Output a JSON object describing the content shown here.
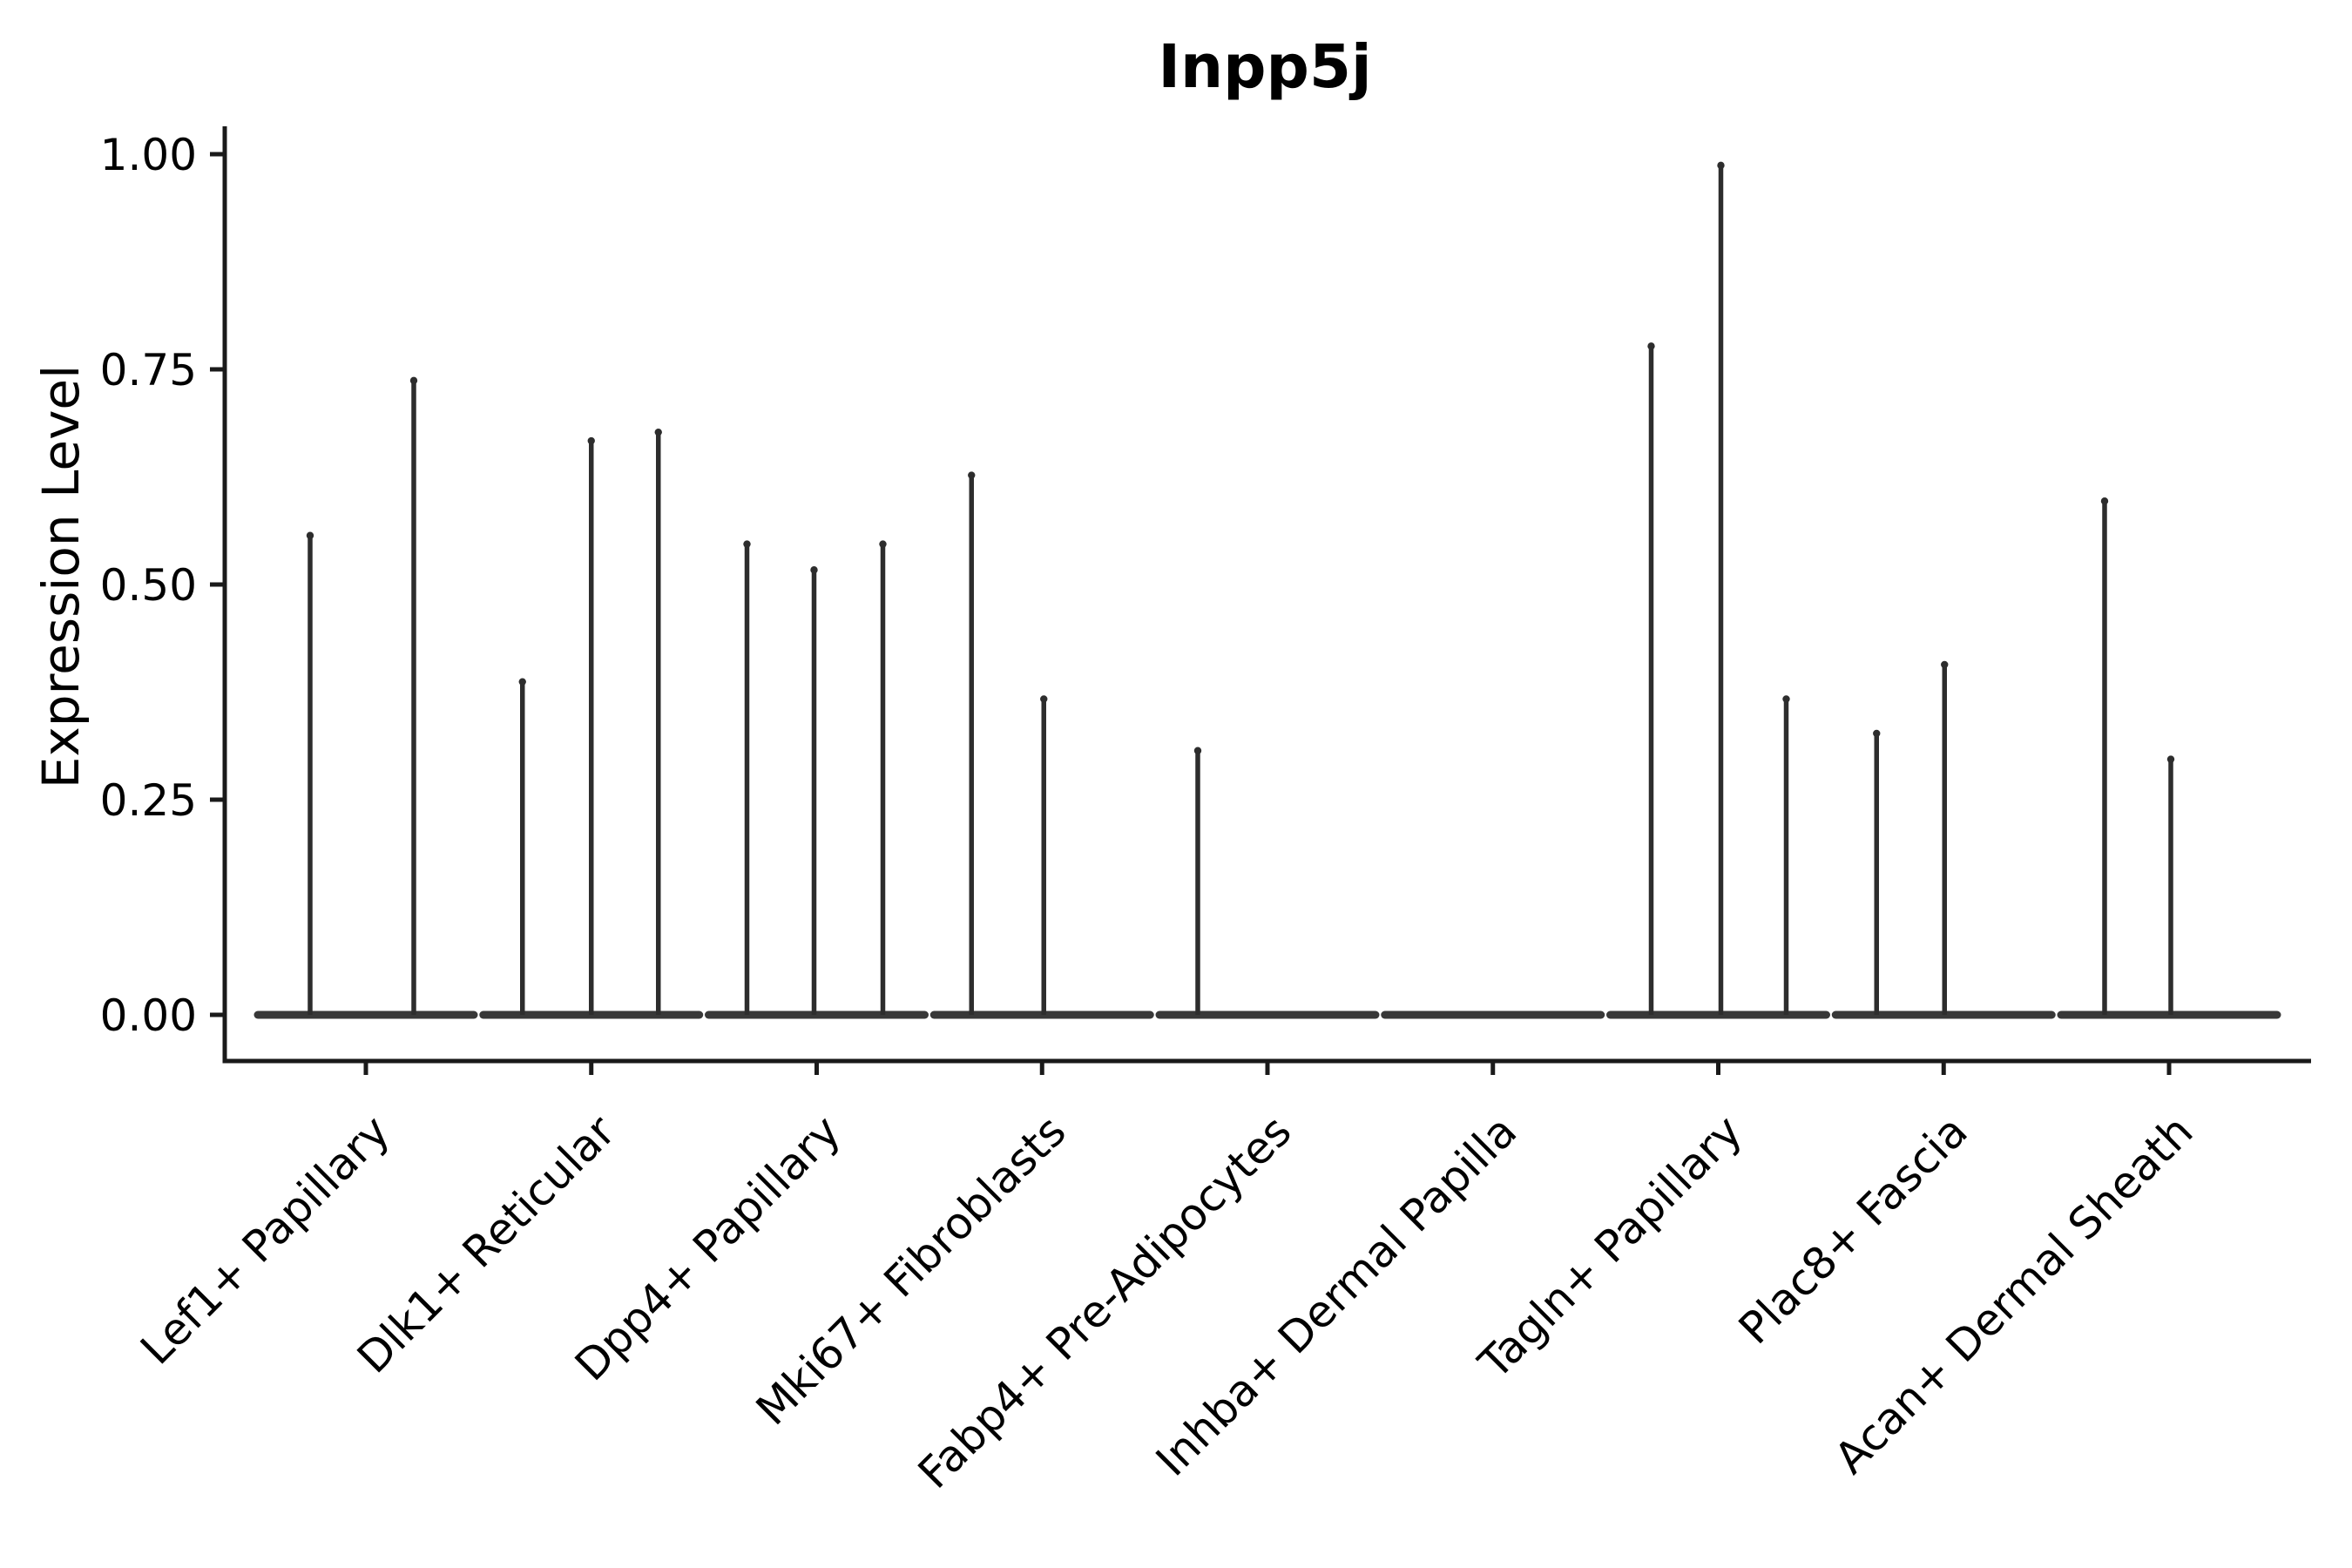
{
  "figure": {
    "title": "Inpp5j",
    "background_color": "#ffffff"
  },
  "chart_data": {
    "type": "violin",
    "title": "Inpp5j",
    "xlabel": "",
    "ylabel": "Expression Level",
    "ylim": [
      0,
      1.03
    ],
    "ytick_labels": [
      "0.00",
      "0.25",
      "0.50",
      "0.75",
      "1.00"
    ],
    "ytick_values": [
      0.0,
      0.25,
      0.5,
      0.75,
      1.0
    ],
    "grid": false,
    "legend": "none",
    "orientation": "vertical",
    "x_label_rotation_deg": 45,
    "categories": [
      "Lef1+ Papillary",
      "Dlk1+ Reticular",
      "Dpp4+ Papillary",
      "Mki67+ Fibroblasts",
      "Fabp4+ Pre-Adipocytes",
      "Inhba+ Dermal Papilla",
      "Tagln+ Papillary",
      "Plac8+ Fascia",
      "Acan+ Dermal Sheath"
    ],
    "groups": [
      {
        "label": "Lef1+ Papillary",
        "baseline_value": 0,
        "spikes": [
          {
            "dx": -64,
            "value": 0.56
          },
          {
            "dx": 55,
            "value": 0.74
          }
        ]
      },
      {
        "label": "Dlk1+ Reticular",
        "baseline_value": 0,
        "spikes": [
          {
            "dx": -79,
            "value": 0.39
          },
          {
            "dx": 0,
            "value": 0.67
          },
          {
            "dx": 77,
            "value": 0.68
          }
        ]
      },
      {
        "label": "Dpp4+ Papillary",
        "baseline_value": 0,
        "spikes": [
          {
            "dx": -80,
            "value": 0.55
          },
          {
            "dx": -3,
            "value": 0.52
          },
          {
            "dx": 76,
            "value": 0.55
          }
        ]
      },
      {
        "label": "Mki67+ Fibroblasts",
        "baseline_value": 0,
        "spikes": [
          {
            "dx": -81,
            "value": 0.63
          },
          {
            "dx": 2,
            "value": 0.37
          }
        ]
      },
      {
        "label": "Fabp4+ Pre-Adipocytes",
        "baseline_value": 0,
        "spikes": [
          {
            "dx": -80,
            "value": 0.31
          }
        ]
      },
      {
        "label": "Inhba+ Dermal Papilla",
        "baseline_value": 0,
        "spikes": []
      },
      {
        "label": "Tagln+ Papillary",
        "baseline_value": 0,
        "spikes": [
          {
            "dx": -77,
            "value": 0.78
          },
          {
            "dx": 3,
            "value": 0.99
          },
          {
            "dx": 78,
            "value": 0.37
          }
        ]
      },
      {
        "label": "Plac8+ Fascia",
        "baseline_value": 0,
        "spikes": [
          {
            "dx": -77,
            "value": 0.33
          },
          {
            "dx": 1,
            "value": 0.41
          }
        ]
      },
      {
        "label": "Acan+ Dermal Sheath",
        "baseline_value": 0,
        "spikes": [
          {
            "dx": -74,
            "value": 0.6
          },
          {
            "dx": 2,
            "value": 0.3
          }
        ]
      }
    ],
    "colors": {
      "violin_baseline": "#383838",
      "spike": "#2d2d2d",
      "axis": "#1a1a1a",
      "text": "#000000",
      "background": "#ffffff"
    }
  }
}
